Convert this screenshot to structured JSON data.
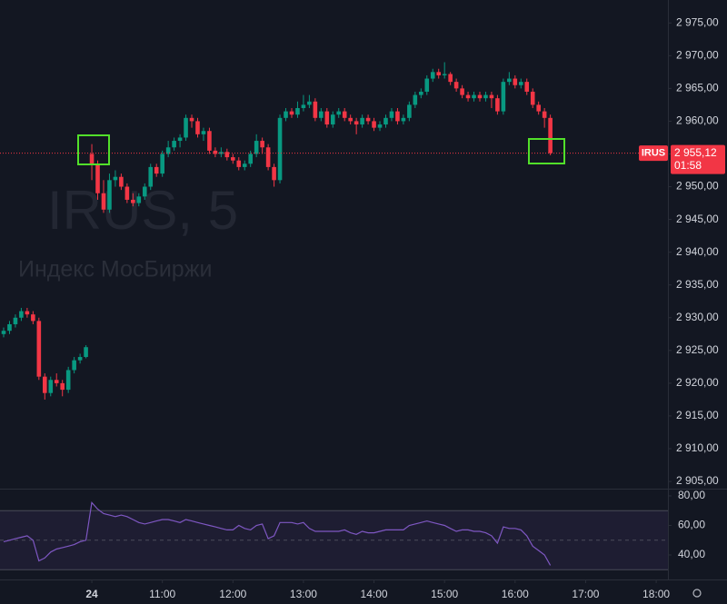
{
  "chart_data": [
    {
      "type": "candlestick",
      "watermark_title": "IRUS, 5",
      "watermark_subtitle": "Индекс МосБиржи",
      "up_color": "#089981",
      "down_color": "#f23645",
      "x": [
        -75,
        -70,
        -65,
        -60,
        -55,
        -50,
        -45,
        -40,
        -35,
        -30,
        -25,
        -20,
        -15,
        -10,
        -5,
        0,
        5,
        10,
        15,
        20,
        25,
        30,
        35,
        40,
        45,
        50,
        55,
        60,
        65,
        70,
        75,
        80,
        85,
        90,
        95,
        100,
        105,
        110,
        115,
        120,
        125,
        130,
        135,
        140,
        145,
        150,
        155,
        160,
        165,
        170,
        175,
        180,
        185,
        190,
        195,
        200,
        205,
        210,
        215,
        220,
        225,
        230,
        235,
        240,
        245,
        250,
        255,
        260,
        265,
        270,
        275,
        280,
        285,
        290,
        295,
        300,
        305,
        310,
        315,
        320,
        325,
        330,
        335,
        340,
        345,
        350,
        355,
        360,
        365,
        370,
        375,
        380,
        385,
        390
      ],
      "open": [
        2927.5,
        2928,
        2929,
        2930,
        2931,
        2930.5,
        2929.5,
        2921,
        2918.5,
        2920.5,
        2920,
        2919,
        2922,
        2923.5,
        2924,
        2955,
        2953.5,
        2949,
        2946.5,
        2951,
        2951.5,
        2950,
        2948,
        2947.5,
        2948.5,
        2950,
        2953,
        2952,
        2955,
        2956,
        2957,
        2957.5,
        2960.5,
        2960,
        2958,
        2958.5,
        2955.5,
        2955,
        2955.3,
        2954.5,
        2954,
        2953,
        2953.5,
        2955,
        2957,
        2956,
        2953,
        2951,
        2960.5,
        2961.5,
        2961,
        2962,
        2962.5,
        2963,
        2960.5,
        2961.5,
        2959.5,
        2961,
        2961.5,
        2960.5,
        2960,
        2959.5,
        2960.5,
        2960,
        2959,
        2959.5,
        2960.5,
        2961.5,
        2960,
        2960.5,
        2962.5,
        2964,
        2964.5,
        2966.5,
        2967.5,
        2967,
        2967.2,
        2966,
        2965,
        2964,
        2963.5,
        2964,
        2963.5,
        2964,
        2963.5,
        2961.5,
        2966,
        2966.5,
        2965.5,
        2966,
        2964.5,
        2962.5,
        2961.5,
        2960.5
      ],
      "high": [
        2928.5,
        2929.5,
        2930.5,
        2931.5,
        2931.5,
        2931,
        2930,
        2921.5,
        2921,
        2921.5,
        2920.5,
        2922.5,
        2924,
        2924.5,
        2925.8,
        2956.5,
        2954,
        2951,
        2952,
        2952.5,
        2952,
        2950.5,
        2949,
        2949,
        2950.5,
        2953.5,
        2953.5,
        2955.5,
        2957,
        2957.5,
        2958,
        2961,
        2961,
        2960.5,
        2959,
        2959,
        2956,
        2956,
        2955.8,
        2955,
        2954.5,
        2954,
        2955.5,
        2958,
        2957.5,
        2956.5,
        2953.5,
        2961,
        2962,
        2962,
        2963,
        2964,
        2964,
        2963.5,
        2962,
        2962,
        2961.5,
        2962,
        2962,
        2961,
        2960.5,
        2961,
        2961,
        2960.5,
        2960,
        2961,
        2962,
        2962,
        2961,
        2963,
        2964.5,
        2965,
        2967,
        2968,
        2968,
        2969,
        2967.5,
        2966.5,
        2965.5,
        2964.5,
        2964.5,
        2964.5,
        2964.5,
        2964.5,
        2964,
        2966.5,
        2967.5,
        2967,
        2966.5,
        2966.5,
        2965,
        2963,
        2962,
        2961
      ],
      "low": [
        2927,
        2927.5,
        2928.5,
        2929.5,
        2930,
        2929,
        2920.5,
        2917.5,
        2918,
        2919.5,
        2918,
        2918.5,
        2921.5,
        2923,
        2923.8,
        2951,
        2948,
        2946,
        2946,
        2950,
        2949.5,
        2947.5,
        2947,
        2947,
        2948,
        2949.5,
        2951.5,
        2951.5,
        2954.5,
        2955.5,
        2956,
        2957,
        2959,
        2957.5,
        2957,
        2955,
        2954.5,
        2954.5,
        2954,
        2953.5,
        2952.5,
        2952.5,
        2953,
        2954.5,
        2955,
        2952.5,
        2950,
        2950.5,
        2960,
        2960.5,
        2960.5,
        2961.5,
        2962,
        2960,
        2960,
        2959,
        2959,
        2960.5,
        2960,
        2959.5,
        2958,
        2959,
        2959.5,
        2958.5,
        2958.5,
        2959,
        2960,
        2959.5,
        2959.5,
        2960,
        2962,
        2963.5,
        2964,
        2966,
        2966.5,
        2966.5,
        2965.5,
        2964.5,
        2963.5,
        2963,
        2963,
        2963,
        2963,
        2962,
        2961,
        2961,
        2965.5,
        2965,
        2965,
        2964,
        2962,
        2961,
        2959,
        2954.8
      ],
      "close": [
        2928,
        2929,
        2930,
        2931,
        2930.5,
        2929.5,
        2921,
        2918.5,
        2920.5,
        2920,
        2919,
        2922,
        2923.5,
        2924,
        2925.5,
        2953.5,
        2949,
        2946.5,
        2951,
        2951.5,
        2950,
        2948,
        2947.5,
        2948.5,
        2950,
        2953,
        2952,
        2955,
        2956,
        2957,
        2957.5,
        2960.5,
        2960,
        2958,
        2958.5,
        2955.5,
        2955,
        2955.3,
        2954.5,
        2954,
        2953,
        2953.5,
        2955,
        2957,
        2956,
        2953,
        2951,
        2960.5,
        2961.5,
        2961,
        2962,
        2962.5,
        2963,
        2960.5,
        2961.5,
        2959.5,
        2961,
        2961.5,
        2960.5,
        2960,
        2959.5,
        2960.5,
        2960,
        2959,
        2959.5,
        2960.5,
        2961.5,
        2960,
        2960.5,
        2962.5,
        2964,
        2964.5,
        2966.5,
        2967.5,
        2967,
        2967.2,
        2966,
        2965,
        2964,
        2963.5,
        2964,
        2963.5,
        2964,
        2963.5,
        2961.5,
        2966,
        2966.5,
        2965.5,
        2966,
        2964.5,
        2962.5,
        2961.5,
        2960.5,
        2955.12
      ],
      "xlim": [
        -78.1,
        490
      ],
      "ylim": [
        2903.9,
        2978.5
      ],
      "yticks": [
        {
          "value": 2905,
          "label": "2 905,00"
        },
        {
          "value": 2910,
          "label": "2 910,00"
        },
        {
          "value": 2915,
          "label": "2 915,00"
        },
        {
          "value": 2920,
          "label": "2 920,00"
        },
        {
          "value": 2925,
          "label": "2 925,00"
        },
        {
          "value": 2930,
          "label": "2 930,00"
        },
        {
          "value": 2935,
          "label": "2 935,00"
        },
        {
          "value": 2940,
          "label": "2 940,00"
        },
        {
          "value": 2945,
          "label": "2 945,00"
        },
        {
          "value": 2950,
          "label": "2 950,00"
        },
        {
          "value": 2955,
          "label": "2 955,00"
        },
        {
          "value": 2960,
          "label": "2 960,00"
        },
        {
          "value": 2965,
          "label": "2 965,00"
        },
        {
          "value": 2970,
          "label": "2 970,00"
        },
        {
          "value": 2975,
          "label": "2 975,00"
        }
      ],
      "last_price": {
        "symbol": "IRUS",
        "value": 2955.12,
        "label": "2 955,12",
        "countdown": "01:58"
      }
    },
    {
      "type": "line",
      "color": "#7e57c2",
      "x": [
        -75,
        -70,
        -65,
        -60,
        -55,
        -50,
        -45,
        -40,
        -35,
        -30,
        -25,
        -20,
        -15,
        -10,
        -5,
        0,
        5,
        10,
        15,
        20,
        25,
        30,
        35,
        40,
        45,
        50,
        55,
        60,
        65,
        70,
        75,
        80,
        85,
        90,
        95,
        100,
        105,
        110,
        115,
        120,
        125,
        130,
        135,
        140,
        145,
        150,
        155,
        160,
        165,
        170,
        175,
        180,
        185,
        190,
        195,
        200,
        205,
        210,
        215,
        220,
        225,
        230,
        235,
        240,
        245,
        250,
        255,
        260,
        265,
        270,
        275,
        280,
        285,
        290,
        295,
        300,
        305,
        310,
        315,
        320,
        325,
        330,
        335,
        340,
        345,
        350,
        355,
        360,
        365,
        370,
        375,
        380,
        385,
        390
      ],
      "values": [
        49,
        50,
        51,
        52,
        53,
        50,
        36,
        38,
        42,
        44,
        45,
        46,
        47,
        49,
        50,
        75.5,
        71,
        68,
        67,
        66,
        67,
        66,
        64,
        62,
        61,
        62,
        63,
        64,
        64,
        63,
        62,
        64,
        63,
        62,
        61,
        60,
        59,
        58,
        57,
        57,
        60,
        58,
        57,
        60,
        61,
        51,
        53,
        62,
        62,
        62,
        61,
        62,
        58,
        56,
        56,
        56,
        56,
        56,
        57,
        55,
        54,
        56,
        55,
        55,
        56,
        57,
        57,
        57,
        57,
        60,
        61,
        62,
        63,
        62,
        61,
        60,
        58,
        56,
        57,
        57,
        56,
        56,
        55,
        53,
        48,
        59,
        58,
        58,
        57,
        53,
        46,
        43,
        40,
        33
      ],
      "band": [
        30,
        70
      ],
      "midline": 50,
      "xlim": [
        -78.1,
        490
      ],
      "ylim": [
        23.4,
        83.7
      ],
      "yticks": [
        {
          "value": 40,
          "label": "40,00"
        },
        {
          "value": 60,
          "label": "60,00"
        },
        {
          "value": 80,
          "label": "80,00"
        }
      ],
      "xticks": [
        {
          "value": 0,
          "label": "24"
        },
        {
          "value": 60,
          "label": "11:00"
        },
        {
          "value": 120,
          "label": "12:00"
        },
        {
          "value": 180,
          "label": "13:00"
        },
        {
          "value": 240,
          "label": "14:00"
        },
        {
          "value": 300,
          "label": "15:00"
        },
        {
          "value": 360,
          "label": "16:00"
        },
        {
          "value": 420,
          "label": "17:00"
        },
        {
          "value": 480,
          "label": "18:00"
        }
      ]
    }
  ]
}
